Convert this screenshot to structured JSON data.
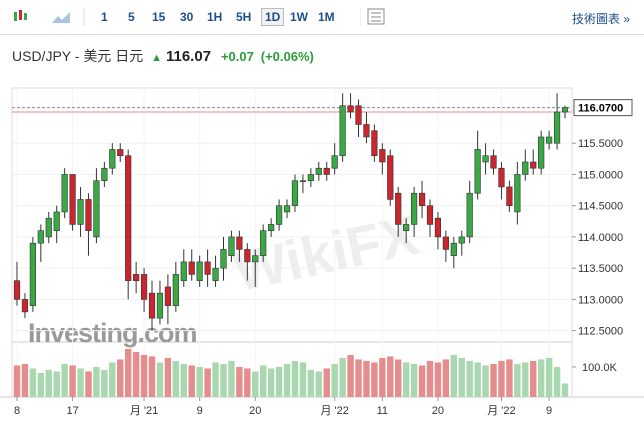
{
  "toolbar": {
    "intervals": [
      "1",
      "5",
      "15",
      "30",
      "1H",
      "5H",
      "1D",
      "1W",
      "1M"
    ],
    "selected": "1D",
    "link": "技術圖表 »"
  },
  "header": {
    "symbol": "USD/JPY - 美元 日元",
    "price": "116.07",
    "change": "+0.07",
    "change_pct": "(+0.06%)"
  },
  "chart_data": {
    "type": "candlestick",
    "watermarks": [
      "WikiFX",
      "Investing.com"
    ],
    "categories": [
      "8",
      null,
      null,
      null,
      null,
      null,
      null,
      "17",
      null,
      null,
      null,
      null,
      null,
      null,
      null,
      null,
      "月 '21",
      null,
      null,
      null,
      null,
      null,
      null,
      "9",
      null,
      null,
      null,
      null,
      null,
      null,
      "20",
      null,
      null,
      null,
      null,
      null,
      null,
      null,
      null,
      null,
      "月 '22",
      null,
      null,
      null,
      null,
      null,
      "11",
      null,
      null,
      null,
      null,
      null,
      null,
      "20",
      null,
      null,
      null,
      null,
      null,
      null,
      null,
      "月 '22",
      null,
      null,
      null,
      null,
      null,
      "9",
      null,
      null
    ],
    "open": [
      113.3,
      113.0,
      112.9,
      113.9,
      114.0,
      114.1,
      114.4,
      115.0,
      114.2,
      114.6,
      114.0,
      114.9,
      115.1,
      115.4,
      115.3,
      113.4,
      113.4,
      113.1,
      112.7,
      113.2,
      112.9,
      113.3,
      113.6,
      113.3,
      113.6,
      113.3,
      113.5,
      113.7,
      114.0,
      113.8,
      113.6,
      113.7,
      114.1,
      114.2,
      114.4,
      114.5,
      114.9,
      114.9,
      115.0,
      115.1,
      115.1,
      115.3,
      116.1,
      116.1,
      115.8,
      115.7,
      115.4,
      115.3,
      114.7,
      114.1,
      114.2,
      114.7,
      114.5,
      114.3,
      114.0,
      113.7,
      113.9,
      114.0,
      114.7,
      115.2,
      115.3,
      115.1,
      114.8,
      114.4,
      115.0,
      115.2,
      115.1,
      115.5,
      115.5,
      116.0
    ],
    "high": [
      113.6,
      113.1,
      114.0,
      114.2,
      114.4,
      114.5,
      115.1,
      115.0,
      114.8,
      114.7,
      115.1,
      115.2,
      115.5,
      115.5,
      115.4,
      113.6,
      113.5,
      113.3,
      113.3,
      113.4,
      113.6,
      113.8,
      113.8,
      113.7,
      113.8,
      113.7,
      114.0,
      114.1,
      114.1,
      113.9,
      113.8,
      114.2,
      114.3,
      114.6,
      114.6,
      115.0,
      115.0,
      115.1,
      115.2,
      115.2,
      115.5,
      116.3,
      116.3,
      116.2,
      116.0,
      115.8,
      115.5,
      115.4,
      114.8,
      114.3,
      114.8,
      114.9,
      114.6,
      114.4,
      114.1,
      114.0,
      114.1,
      114.9,
      115.7,
      115.5,
      115.4,
      115.2,
      114.9,
      115.2,
      115.4,
      115.4,
      115.7,
      115.7,
      116.3,
      116.1
    ],
    "low": [
      112.9,
      112.7,
      112.8,
      113.6,
      113.9,
      113.9,
      114.3,
      114.1,
      114.0,
      113.7,
      113.9,
      114.8,
      115.0,
      115.2,
      113.0,
      113.1,
      112.8,
      112.5,
      112.6,
      112.6,
      112.8,
      113.2,
      113.3,
      113.2,
      113.2,
      113.2,
      113.3,
      113.6,
      113.6,
      113.3,
      113.2,
      113.6,
      114.0,
      114.1,
      114.3,
      114.4,
      114.7,
      114.8,
      114.9,
      114.9,
      115.0,
      115.2,
      115.9,
      115.6,
      115.5,
      115.2,
      115.0,
      114.5,
      114.0,
      113.9,
      114.0,
      114.3,
      114.0,
      113.8,
      113.6,
      113.5,
      113.7,
      113.9,
      114.6,
      115.0,
      115.0,
      114.6,
      114.4,
      114.2,
      114.9,
      115.0,
      115.0,
      115.4,
      115.4,
      115.9
    ],
    "close": [
      113.0,
      112.8,
      113.9,
      114.1,
      114.3,
      114.4,
      115.0,
      114.2,
      114.6,
      114.1,
      114.9,
      115.1,
      115.4,
      115.3,
      113.3,
      113.3,
      113.0,
      112.7,
      113.1,
      112.9,
      113.4,
      113.6,
      113.4,
      113.6,
      113.4,
      113.5,
      113.8,
      114.0,
      113.8,
      113.6,
      113.7,
      114.1,
      114.2,
      114.5,
      114.5,
      114.9,
      114.9,
      115.0,
      115.1,
      115.0,
      115.3,
      116.1,
      116.0,
      115.8,
      115.6,
      115.3,
      115.2,
      114.6,
      114.2,
      114.2,
      114.7,
      114.5,
      114.2,
      114.0,
      113.8,
      113.9,
      114.0,
      114.7,
      115.4,
      115.3,
      115.1,
      114.8,
      114.5,
      115.0,
      115.2,
      115.1,
      115.6,
      115.6,
      116.0,
      116.07
    ],
    "volume": [
      105000,
      110000,
      95000,
      80000,
      90000,
      85000,
      110000,
      105000,
      95000,
      85000,
      100000,
      90000,
      115000,
      125000,
      160000,
      150000,
      140000,
      135000,
      115000,
      130000,
      120000,
      110000,
      105000,
      100000,
      95000,
      115000,
      110000,
      120000,
      100000,
      95000,
      85000,
      105000,
      95000,
      100000,
      110000,
      120000,
      115000,
      90000,
      85000,
      95000,
      110000,
      130000,
      140000,
      125000,
      120000,
      115000,
      130000,
      135000,
      125000,
      115000,
      110000,
      105000,
      120000,
      115000,
      125000,
      140000,
      130000,
      120000,
      115000,
      105000,
      110000,
      120000,
      125000,
      110000,
      115000,
      120000,
      125000,
      130000,
      100000,
      45000
    ],
    "up_color": "#3aa845",
    "down_color": "#c9262d",
    "vol_up_color": "#a9d8b0",
    "vol_down_color": "#e58d8d",
    "ylim": [
      112.35,
      116.32
    ],
    "yticks": [
      {
        "value": 112.5,
        "label": "112.5000"
      },
      {
        "value": 113,
        "label": "113.0000"
      },
      {
        "value": 113.5,
        "label": "113.5000"
      },
      {
        "value": 114,
        "label": "114.0000"
      },
      {
        "value": 114.5,
        "label": "114.5000"
      },
      {
        "value": 115,
        "label": "115.0000"
      },
      {
        "value": 115.5,
        "label": "115.5000"
      }
    ],
    "last_price": {
      "value": 116.07,
      "label": "116.0700"
    },
    "prev_close": 116.0,
    "vlim": [
      0,
      173000
    ],
    "vticks": [
      {
        "value": 100000,
        "label": "100.0K"
      }
    ],
    "grid": true
  }
}
